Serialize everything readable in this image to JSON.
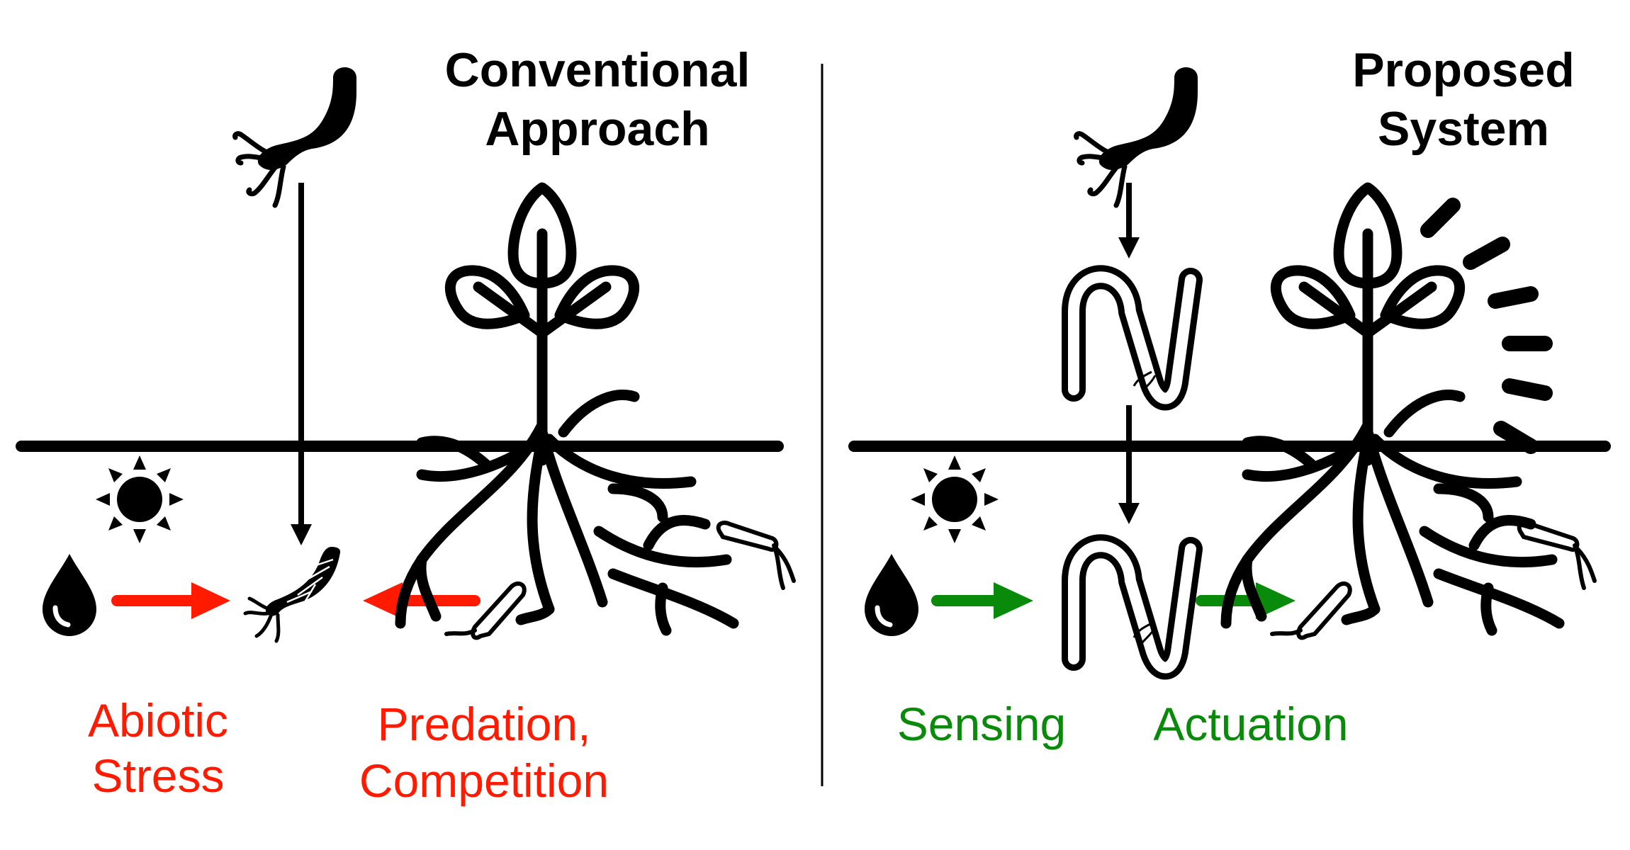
{
  "left_panel": {
    "title_line1": "Conventional",
    "title_line2": "Approach",
    "label_abiotic_line1": "Abiotic",
    "label_abiotic_line2": "Stress",
    "label_predation_line1": "Predation,",
    "label_predation_line2": "Competition"
  },
  "right_panel": {
    "title_line1": "Proposed",
    "title_line2": "System",
    "label_sensing": "Sensing",
    "label_actuation": "Actuation"
  },
  "colors": {
    "negative": "#ff1a00",
    "positive": "#0a8a0a",
    "ink": "#000000"
  },
  "icons": [
    "bacterium-icon",
    "plant-icon",
    "sun-icon",
    "water-drop-icon",
    "capsule-icon",
    "glow-rays-icon"
  ]
}
